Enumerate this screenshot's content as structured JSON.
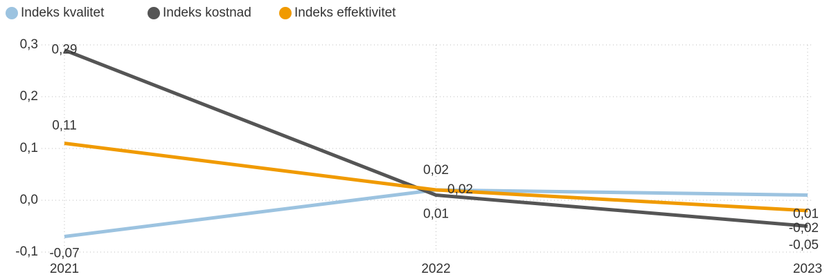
{
  "chart_data": {
    "type": "line",
    "categories": [
      "2021",
      "2022",
      "2023"
    ],
    "series": [
      {
        "name": "Indeks kvalitet",
        "color": "#9cc3e0",
        "values": [
          -0.07,
          0.02,
          0.01
        ],
        "value_labels": [
          "-0,07",
          "0,02",
          "0,01"
        ]
      },
      {
        "name": "Indeks kostnad",
        "color": "#555555",
        "values": [
          0.29,
          0.01,
          -0.05
        ],
        "value_labels": [
          "0,29",
          "0,01",
          "-0,05"
        ]
      },
      {
        "name": "Indeks effektivitet",
        "color": "#f09a00",
        "values": [
          0.11,
          0.02,
          -0.02
        ],
        "value_labels": [
          "0,11",
          "0,02",
          "-0,02"
        ]
      }
    ],
    "ylim": [
      -0.1,
      0.3
    ],
    "yticks": [
      {
        "value": -0.1,
        "label": "-0,1"
      },
      {
        "value": 0,
        "label": "0,0"
      },
      {
        "value": 0.1,
        "label": "0,1"
      },
      {
        "value": 0.2,
        "label": "0,2"
      },
      {
        "value": 0.3,
        "label": "0,3"
      }
    ],
    "grid": true
  }
}
